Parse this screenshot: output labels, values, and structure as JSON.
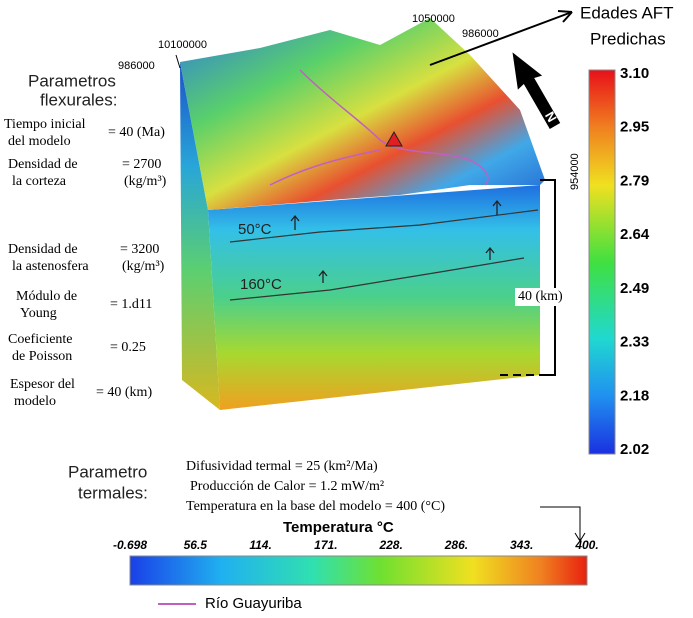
{
  "coordinates": {
    "top_left_x": "10100000",
    "top_left_y": "986000",
    "top_right_x": "1050000",
    "top_right_y": "986000",
    "right_y": "954000"
  },
  "north_label": "N",
  "age_colorbar": {
    "title": [
      "Edades AFT",
      "Predichas"
    ],
    "labels": [
      "3.10",
      "2.95",
      "2.79",
      "2.64",
      "2.49",
      "2.33",
      "2.18",
      "2.02"
    ]
  },
  "flexural": {
    "title": [
      "Parametros",
      "flexurales:"
    ],
    "params": [
      {
        "label": [
          "Tiempo inicial",
          "del modelo"
        ],
        "value": [
          "= 40 (Ma)"
        ]
      },
      {
        "label": [
          "Densidad de",
          "la corteza"
        ],
        "value": [
          "= 2700",
          "(kg/m³)"
        ]
      },
      {
        "label": [
          "Densidad de",
          "la astenosfera"
        ],
        "value": [
          "= 3200",
          "(kg/m³)"
        ]
      },
      {
        "label": [
          "Módulo de",
          "Young"
        ],
        "value": [
          "= 1.d11"
        ]
      },
      {
        "label": [
          "Coeficiente",
          "de Poisson"
        ],
        "value": [
          "= 0.25"
        ]
      },
      {
        "label": [
          "Espesor del",
          "modelo"
        ],
        "value": [
          "= 40 (km)"
        ]
      }
    ]
  },
  "isotherms": [
    "50°C",
    "160°C"
  ],
  "thickness_label": "40 (km)",
  "thermal": {
    "title": [
      "Parametro",
      "termales:"
    ],
    "lines": [
      "Difusividad termal = 25 (km²/Ma)",
      "Producción de Calor = 1.2 mW/m²",
      "Temperatura en la base del modelo = 400 (°C)"
    ]
  },
  "temperature_colorbar": {
    "title": "Temperatura °C",
    "labels": [
      "-0.698",
      "56.5",
      "114.",
      "171.",
      "228.",
      "286.",
      "343.",
      "400."
    ]
  },
  "legend": "Río Guayuriba"
}
